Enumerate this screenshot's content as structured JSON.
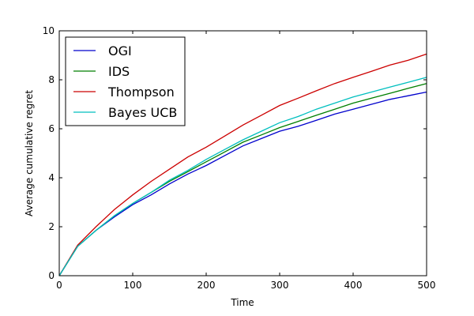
{
  "chart_data": {
    "type": "line",
    "title": "",
    "xlabel": "Time",
    "ylabel": "Average cumulative regret",
    "xlim": [
      0,
      500
    ],
    "ylim": [
      0,
      10
    ],
    "xticks": [
      0,
      100,
      200,
      300,
      400,
      500
    ],
    "yticks": [
      0,
      2,
      4,
      6,
      8,
      10
    ],
    "grid": false,
    "legend_position": "top-left",
    "x": [
      0,
      25,
      50,
      75,
      100,
      125,
      150,
      175,
      200,
      225,
      250,
      275,
      300,
      325,
      350,
      375,
      400,
      425,
      450,
      475,
      500
    ],
    "series": [
      {
        "name": "OGI",
        "color": "#0000cc",
        "values": [
          0.0,
          1.2,
          1.85,
          2.4,
          2.9,
          3.3,
          3.75,
          4.15,
          4.5,
          4.9,
          5.3,
          5.6,
          5.9,
          6.1,
          6.35,
          6.6,
          6.8,
          7.0,
          7.2,
          7.35,
          7.5
        ]
      },
      {
        "name": "IDS",
        "color": "#007f00",
        "values": [
          0.0,
          1.2,
          1.85,
          2.45,
          2.95,
          3.4,
          3.85,
          4.25,
          4.65,
          5.05,
          5.45,
          5.75,
          6.05,
          6.3,
          6.55,
          6.8,
          7.05,
          7.25,
          7.45,
          7.65,
          7.85
        ]
      },
      {
        "name": "Thompson",
        "color": "#cc0000",
        "values": [
          0.0,
          1.25,
          2.0,
          2.7,
          3.3,
          3.85,
          4.35,
          4.85,
          5.25,
          5.7,
          6.15,
          6.55,
          6.95,
          7.25,
          7.55,
          7.85,
          8.1,
          8.35,
          8.6,
          8.8,
          9.05
        ]
      },
      {
        "name": "Bayes UCB",
        "color": "#00bfbf",
        "values": [
          0.0,
          1.2,
          1.85,
          2.45,
          2.95,
          3.4,
          3.9,
          4.3,
          4.75,
          5.15,
          5.55,
          5.9,
          6.25,
          6.5,
          6.8,
          7.05,
          7.3,
          7.5,
          7.7,
          7.9,
          8.1
        ]
      }
    ]
  }
}
